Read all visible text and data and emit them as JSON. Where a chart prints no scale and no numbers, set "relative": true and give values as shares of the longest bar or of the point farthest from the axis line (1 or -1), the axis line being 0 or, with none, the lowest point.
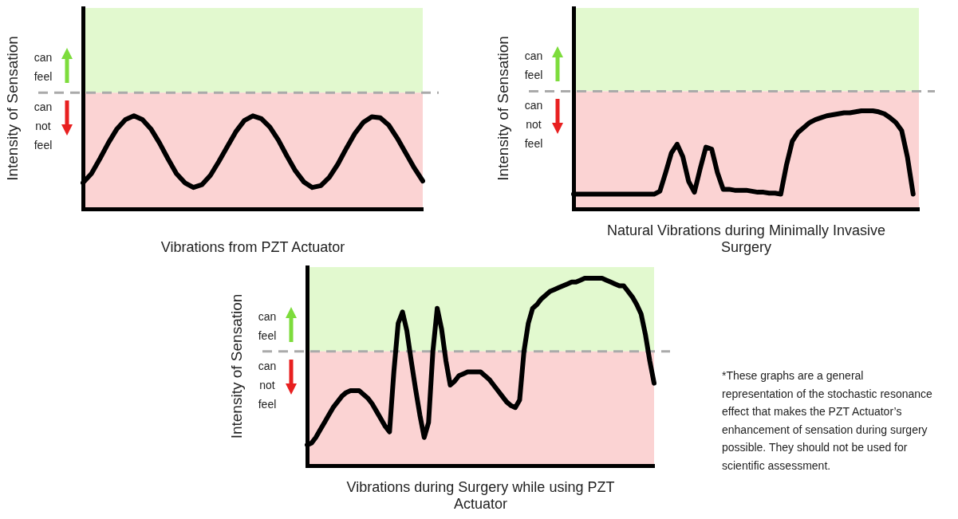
{
  "chart_data": [
    {
      "type": "line",
      "relative": true,
      "xlabel": "Vibrations from PZT Actuator",
      "ylabel": "Intensity of Sensation",
      "categories": [
        null,
        null,
        null,
        null,
        null,
        null,
        null,
        null,
        null,
        null,
        null,
        null,
        null,
        null,
        null,
        null,
        null,
        null,
        null,
        null,
        null,
        null,
        null,
        null,
        null,
        null,
        null,
        null,
        null,
        null,
        null,
        null,
        null,
        null,
        null,
        null,
        null,
        null,
        null,
        null,
        null
      ],
      "color": "#000000",
      "values": [
        0.28,
        0.38,
        0.54,
        0.71,
        0.86,
        0.96,
        1,
        0.96,
        0.86,
        0.71,
        0.54,
        0.38,
        0.28,
        0.23,
        0.26,
        0.36,
        0.51,
        0.67,
        0.83,
        0.95,
        1,
        0.97,
        0.88,
        0.74,
        0.57,
        0.41,
        0.29,
        0.23,
        0.25,
        0.34,
        0.48,
        0.65,
        0.81,
        0.93,
        0.99,
        0.98,
        0.9,
        0.76,
        0.6,
        0.44,
        0.3
      ],
      "bands": [
        {
          "axis": "y",
          "from": 1.25,
          "to": 2.16,
          "label": "can feel",
          "color": "#e2f9cf"
        },
        {
          "axis": "y",
          "from": 0,
          "to": 1.25,
          "label": "can not feel",
          "color": "#fbd3d3"
        }
      ],
      "ref_lines": [
        {
          "axis": "y",
          "value": 1.25,
          "color": "#aaaaaa",
          "line_style": "dashed"
        }
      ]
    },
    {
      "type": "line",
      "relative": true,
      "xlabel": "Natural Vibrations during Minimally Invasive Surgery",
      "ylabel": "Intensity of Sensation",
      "categories": [
        null,
        null,
        null,
        null,
        null,
        null,
        null,
        null,
        null,
        null,
        null,
        null,
        null,
        null,
        null,
        null,
        null,
        null,
        null,
        null,
        null,
        null,
        null,
        null,
        null,
        null,
        null,
        null,
        null,
        null,
        null,
        null,
        null,
        null,
        null,
        null,
        null,
        null,
        null,
        null,
        null,
        null,
        null,
        null,
        null,
        null,
        null,
        null,
        null,
        null,
        null,
        null,
        null,
        null,
        null,
        null,
        null,
        null,
        null,
        null,
        null
      ],
      "color": "#000000",
      "values": [
        0.15,
        0.15,
        0.15,
        0.15,
        0.15,
        0.15,
        0.15,
        0.15,
        0.15,
        0.15,
        0.15,
        0.15,
        0.15,
        0.15,
        0.15,
        0.18,
        0.37,
        0.57,
        0.66,
        0.53,
        0.28,
        0.17,
        0.41,
        0.63,
        0.61,
        0.37,
        0.2,
        0.2,
        0.19,
        0.19,
        0.19,
        0.18,
        0.17,
        0.17,
        0.16,
        0.16,
        0.15,
        0.45,
        0.69,
        0.78,
        0.83,
        0.88,
        0.91,
        0.93,
        0.95,
        0.96,
        0.97,
        0.98,
        0.98,
        0.99,
        1,
        1,
        1,
        0.99,
        0.97,
        0.93,
        0.88,
        0.8,
        0.53,
        0.15,
        null
      ],
      "bands": [
        {
          "axis": "y",
          "from": 1.2,
          "to": 2.05,
          "label": "can feel",
          "color": "#e2f9cf"
        },
        {
          "axis": "y",
          "from": 0,
          "to": 1.2,
          "label": "can not feel",
          "color": "#fbd3d3"
        }
      ],
      "ref_lines": [
        {
          "axis": "y",
          "value": 1.2,
          "color": "#aaaaaa",
          "line_style": "dashed"
        }
      ]
    },
    {
      "type": "line",
      "relative": true,
      "xlabel": "Vibrations during Surgery while using PZT Actuator",
      "ylabel": "Intensity of Sensation",
      "categories": [
        null,
        null,
        null,
        null,
        null,
        null,
        null,
        null,
        null,
        null,
        null,
        null,
        null,
        null,
        null,
        null,
        null,
        null,
        null,
        null,
        null,
        null,
        null,
        null,
        null,
        null,
        null,
        null,
        null,
        null,
        null,
        null,
        null,
        null,
        null,
        null,
        null,
        null,
        null,
        null,
        null,
        null,
        null,
        null,
        null,
        null,
        null,
        null,
        null,
        null,
        null,
        null,
        null,
        null,
        null,
        null,
        null,
        null,
        null,
        null,
        null,
        null,
        null,
        null,
        null,
        null,
        null,
        null,
        null,
        null,
        null,
        null,
        null,
        null,
        null,
        null,
        null,
        null,
        null,
        null,
        null
      ],
      "color": "#000000",
      "values": [
        0.11,
        0.12,
        0.15,
        0.19,
        0.23,
        0.27,
        0.31,
        0.34,
        0.37,
        0.39,
        0.4,
        0.4,
        0.4,
        0.38,
        0.36,
        0.33,
        0.29,
        0.25,
        0.21,
        0.18,
        0.5,
        0.76,
        0.82,
        0.72,
        0.56,
        0.41,
        0.27,
        0.15,
        0.23,
        0.61,
        0.84,
        0.73,
        0.56,
        0.43,
        0.45,
        0.48,
        0.49,
        0.5,
        0.5,
        0.5,
        0.5,
        0.48,
        0.46,
        0.43,
        0.4,
        0.37,
        0.34,
        0.32,
        0.31,
        0.35,
        0.61,
        0.76,
        0.84,
        0.86,
        0.89,
        0.91,
        0.93,
        0.94,
        0.95,
        0.96,
        0.97,
        0.98,
        0.98,
        0.99,
        1,
        1,
        1,
        1,
        1,
        0.99,
        0.98,
        0.97,
        0.96,
        0.96,
        0.93,
        0.9,
        0.86,
        0.81,
        0.7,
        0.56,
        0.44
      ],
      "bands": [
        {
          "axis": "y",
          "from": 0.61,
          "to": 1.06,
          "label": "can feel",
          "color": "#e2f9cf"
        },
        {
          "axis": "y",
          "from": 0,
          "to": 0.61,
          "label": "can not feel",
          "color": "#fbd3d3"
        }
      ],
      "ref_lines": [
        {
          "axis": "y",
          "value": 0.61,
          "color": "#aaaaaa",
          "line_style": "dashed"
        }
      ],
      "annotations": [
        "*These graphs are a general representation of the stochastic resonance effect that makes the PZT Actuator’s enhancement of sensation during surgery possible. They should not be used for scientific assessment."
      ]
    }
  ]
}
